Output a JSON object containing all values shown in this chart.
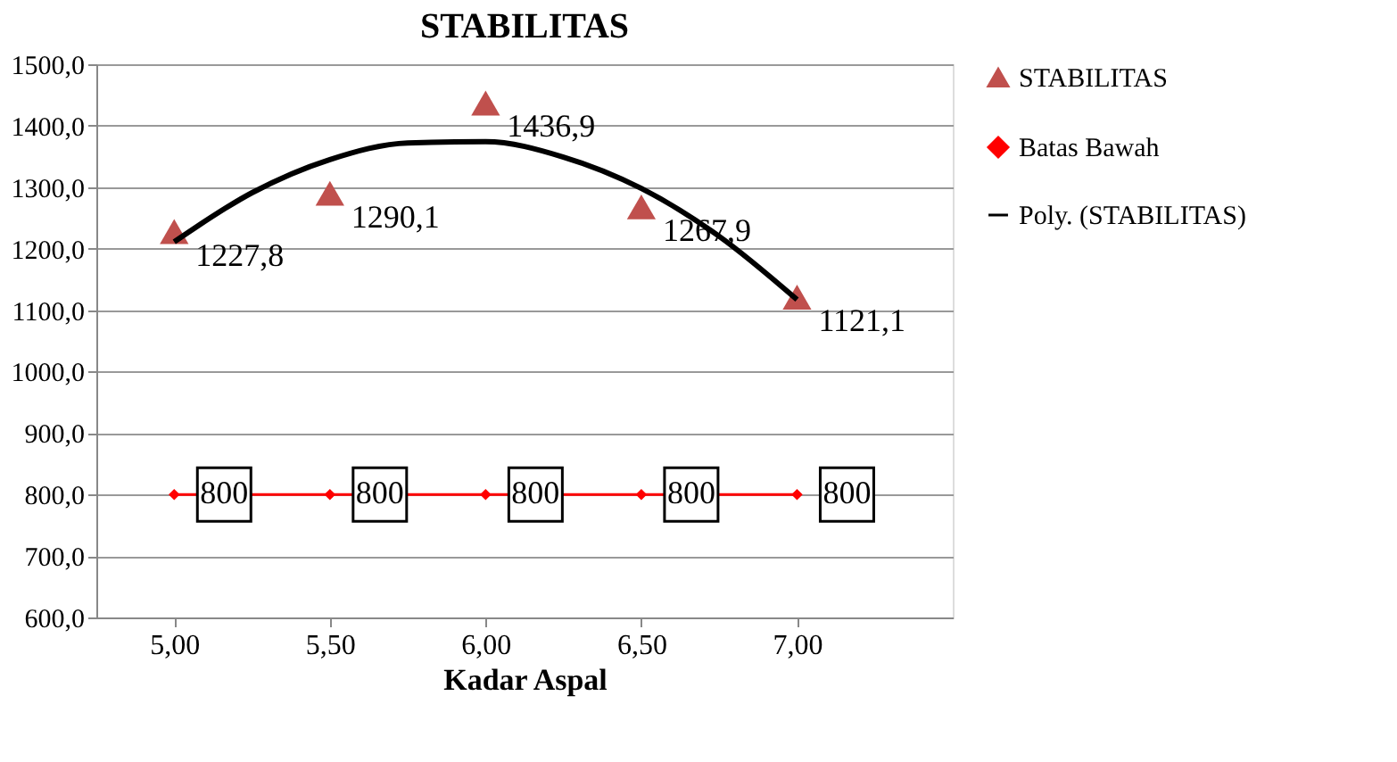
{
  "chart_data": {
    "type": "scatter",
    "title": "STABILITAS",
    "xlabel": "Kadar Aspal",
    "x": [
      5.0,
      5.5,
      6.0,
      6.5,
      7.0
    ],
    "xlim": [
      4.75,
      7.5
    ],
    "xticks": [
      {
        "value": 5,
        "label": "5,00"
      },
      {
        "value": 5.5,
        "label": "5,50"
      },
      {
        "value": 6,
        "label": "6,00"
      },
      {
        "value": 6.5,
        "label": "6,50"
      },
      {
        "value": 7,
        "label": "7,00"
      }
    ],
    "ylim": [
      600,
      1500
    ],
    "yticks": [
      {
        "value": 600,
        "label": "600,0"
      },
      {
        "value": 700,
        "label": "700,0"
      },
      {
        "value": 800,
        "label": "800,0"
      },
      {
        "value": 900,
        "label": "900,0"
      },
      {
        "value": 1000,
        "label": "1000,0"
      },
      {
        "value": 1100,
        "label": "1100,0"
      },
      {
        "value": 1200,
        "label": "1200,0"
      },
      {
        "value": 1300,
        "label": "1300,0"
      },
      {
        "value": 1400,
        "label": "1400,0"
      },
      {
        "value": 1500,
        "label": "1500,0"
      }
    ],
    "grid": "y",
    "legend": "right",
    "series": [
      {
        "name": "STABILITAS",
        "marker": "triangle",
        "color": "#c0504d",
        "values": [
          1227.8,
          1290.1,
          1436.9,
          1267.9,
          1121.1
        ],
        "value_labels": [
          "1227,8",
          "1290,1",
          "1436,9",
          "1267,9",
          "1121,1"
        ]
      },
      {
        "name": "Batas Bawah",
        "type": "line",
        "marker": "diamond",
        "color": "#ff0000",
        "values": [
          800,
          800,
          800,
          800,
          800
        ],
        "value_labels": [
          "800",
          "800",
          "800",
          "800",
          "800"
        ]
      },
      {
        "name": "Poly. (STABILITAS)",
        "type": "line",
        "marker": "none",
        "color": "#000000",
        "x": [
          5.0,
          5.25,
          5.5,
          5.75,
          6.0,
          6.25,
          6.5,
          6.75,
          7.0
        ],
        "values": [
          1211,
          1291,
          1345,
          1372,
          1374,
          1349,
          1298,
          1220,
          1117
        ]
      }
    ]
  }
}
